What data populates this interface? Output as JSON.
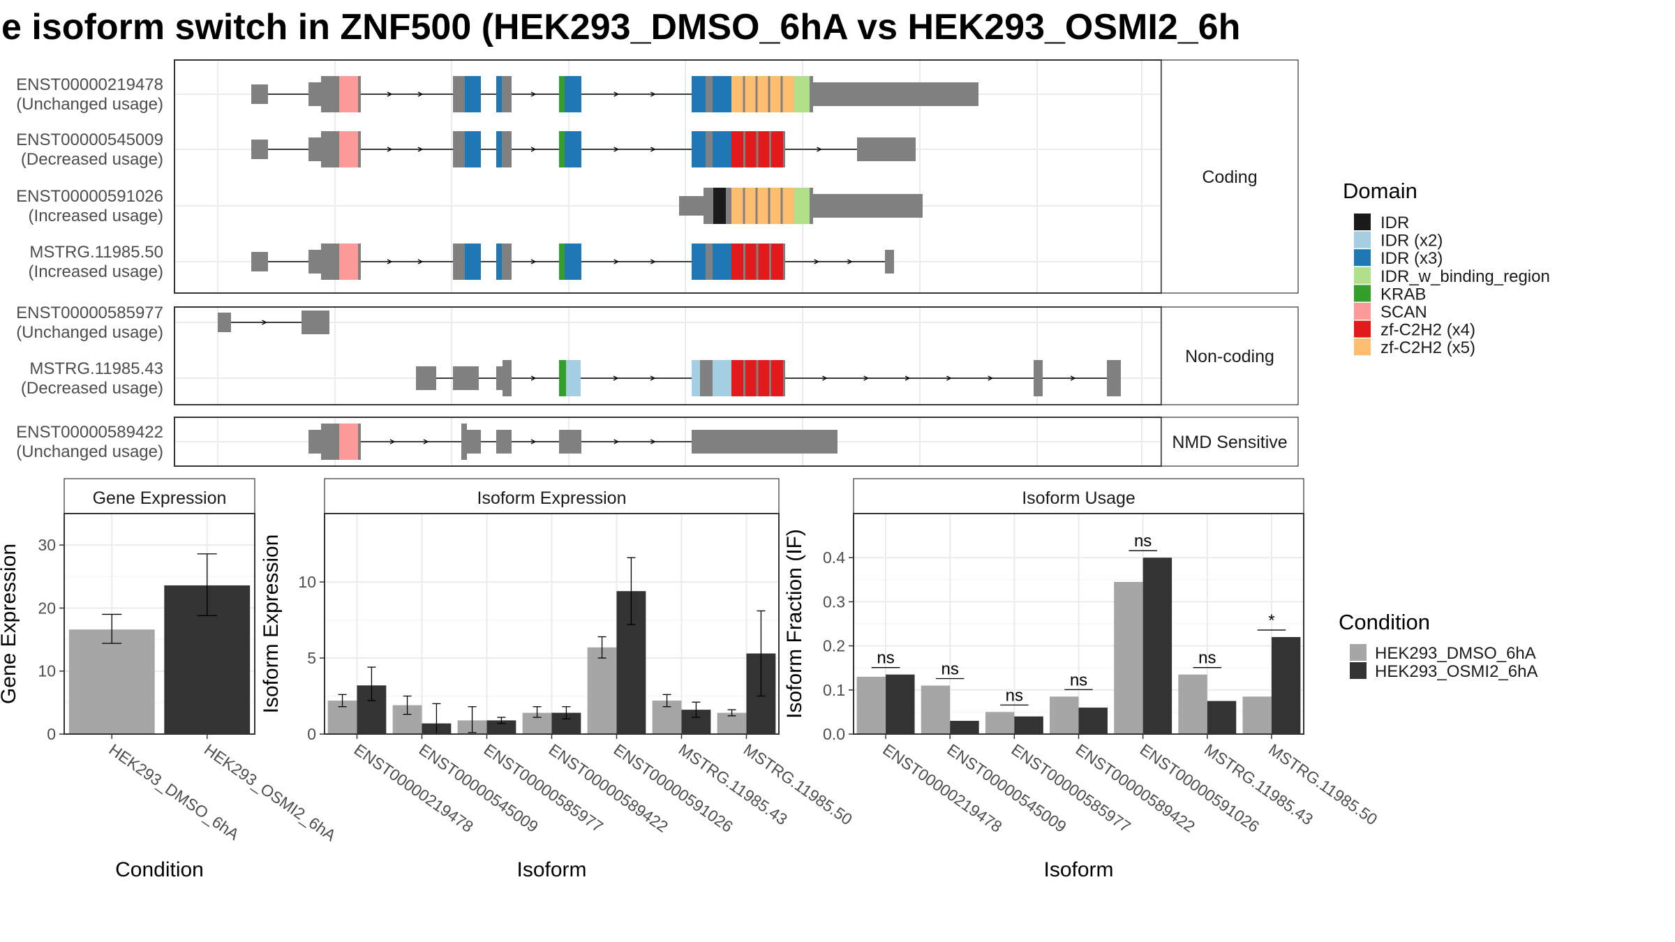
{
  "title": "e isoform switch in ZNF500 (HEK293_DMSO_6hA vs HEK293_OSMI2_6h",
  "colors": {
    "IDR": "#1a1a1a",
    "IDR (x2)": "#a6cee3",
    "IDR (x3)": "#1f78b4",
    "IDR_w_binding_region": "#b2df8a",
    "KRAB": "#33a02c",
    "SCAN": "#fb9a99",
    "zf-C2H2 (x4)": "#e31a1c",
    "zf-C2H2 (x5)": "#fdbf6f",
    "exon": "#808080",
    "DMSO": "#a6a6a6",
    "OSMI2": "#333333",
    "strip_bg": "#ffffff",
    "grid": "#ebebeb"
  },
  "structure": {
    "facets": [
      {
        "label": "Coding",
        "transcripts": [
          {
            "id": "ENST00000219478",
            "status": "(Unchanged usage)"
          },
          {
            "id": "ENST00000545009",
            "status": "(Decreased usage)"
          },
          {
            "id": "ENST00000591026",
            "status": "(Increased usage)"
          },
          {
            "id": "MSTRG.11985.50",
            "status": "(Increased usage)"
          }
        ]
      },
      {
        "label": "Non-coding",
        "transcripts": [
          {
            "id": "ENST00000585977",
            "status": "(Unchanged usage)"
          },
          {
            "id": "MSTRG.11985.43",
            "status": "(Decreased usage)"
          }
        ]
      },
      {
        "label": "NMD Sensitive",
        "transcripts": [
          {
            "id": "ENST00000589422",
            "status": "(Unchanged usage)"
          }
        ]
      }
    ]
  },
  "domain_legend": {
    "title": "Domain",
    "items": [
      "IDR",
      "IDR (x2)",
      "IDR (x3)",
      "IDR_w_binding_region",
      "KRAB",
      "SCAN",
      "zf-C2H2 (x4)",
      "zf-C2H2 (x5)"
    ]
  },
  "condition_legend": {
    "title": "Condition",
    "items": [
      {
        "label": "HEK293_DMSO_6hA",
        "color": "#a6a6a6"
      },
      {
        "label": "HEK293_OSMI2_6hA",
        "color": "#333333"
      }
    ]
  },
  "chart_data": [
    {
      "type": "bar",
      "title": "Gene Expression",
      "xlabel": "Condition",
      "ylabel": "Gene Expression",
      "ylim": [
        0,
        35
      ],
      "yticks": [
        0,
        10,
        20,
        30
      ],
      "categories": [
        "HEK293_DMSO_6hA",
        "HEK293_OSMI2_6hA"
      ],
      "values": [
        16.6,
        23.6
      ],
      "error_low": [
        14.4,
        18.8
      ],
      "error_high": [
        19.0,
        28.6
      ]
    },
    {
      "type": "bar",
      "title": "Isoform Expression",
      "xlabel": "Isoform",
      "ylabel": "Isoform Expression",
      "ylim": [
        0,
        14.5
      ],
      "yticks": [
        0,
        5,
        10
      ],
      "categories": [
        "ENST00000219478",
        "ENST00000545009",
        "ENST00000585977",
        "ENST00000589422",
        "ENST00000591026",
        "MSTRG.11985.43",
        "MSTRG.11985.50"
      ],
      "series": [
        {
          "name": "HEK293_DMSO_6hA",
          "values": [
            2.2,
            1.9,
            0.9,
            1.4,
            5.7,
            2.2,
            1.4
          ],
          "error_low": [
            1.8,
            1.3,
            0.1,
            1.1,
            5.0,
            1.8,
            1.2
          ],
          "error_high": [
            2.6,
            2.5,
            1.8,
            1.8,
            6.4,
            2.6,
            1.6
          ]
        },
        {
          "name": "HEK293_OSMI2_6hA",
          "values": [
            3.2,
            0.7,
            0.9,
            1.4,
            9.4,
            1.6,
            5.3
          ],
          "error_low": [
            2.2,
            0.0,
            0.7,
            1.0,
            7.2,
            1.1,
            2.5
          ],
          "error_high": [
            4.4,
            2.0,
            1.1,
            1.8,
            11.6,
            2.1,
            8.1
          ]
        }
      ]
    },
    {
      "type": "bar",
      "title": "Isoform Usage",
      "xlabel": "Isoform",
      "ylabel": "Isoform Fraction (IF)",
      "ylim": [
        0,
        0.5
      ],
      "yticks": [
        0.0,
        0.1,
        0.2,
        0.3,
        0.4
      ],
      "ytick_labels": [
        "0.0",
        "0.1",
        "0.2",
        "0.3",
        "0.4"
      ],
      "categories": [
        "ENST00000219478",
        "ENST00000545009",
        "ENST00000585977",
        "ENST00000589422",
        "ENST00000591026",
        "MSTRG.11985.43",
        "MSTRG.11985.50"
      ],
      "series": [
        {
          "name": "HEK293_DMSO_6hA",
          "values": [
            0.13,
            0.11,
            0.05,
            0.085,
            0.345,
            0.135,
            0.085
          ]
        },
        {
          "name": "HEK293_OSMI2_6hA",
          "values": [
            0.135,
            0.03,
            0.04,
            0.06,
            0.4,
            0.075,
            0.22
          ]
        }
      ],
      "significance": [
        "ns",
        "ns",
        "ns",
        "ns",
        "ns",
        "ns",
        "*"
      ]
    }
  ]
}
